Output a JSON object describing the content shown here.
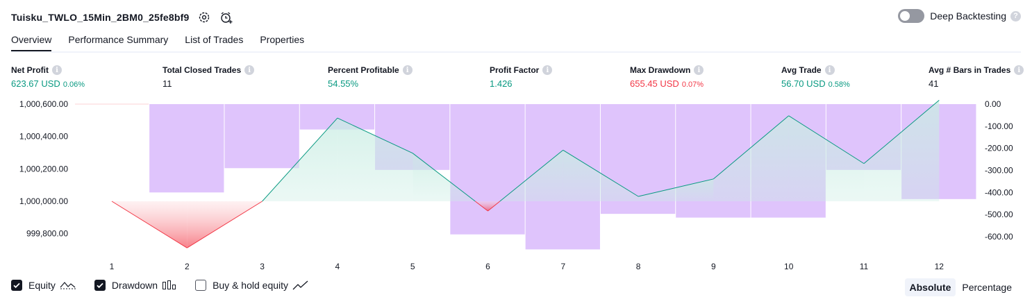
{
  "header": {
    "strategy_name": "Tuisku_TWLO_15Min_2BM0_25fe8bf9",
    "deep_backtesting_label": "Deep Backtesting",
    "deep_backtesting_on": false
  },
  "tabs": [
    {
      "label": "Overview",
      "active": true
    },
    {
      "label": "Performance Summary"
    },
    {
      "label": "List of Trades"
    },
    {
      "label": "Properties"
    }
  ],
  "metrics": [
    {
      "label": "Net Profit",
      "value": "623.67 USD",
      "pct": "0.06%",
      "color": "green"
    },
    {
      "label": "Total Closed Trades",
      "value": "11",
      "pct": "",
      "color": "dark"
    },
    {
      "label": "Percent Profitable",
      "value": "54.55%",
      "pct": "",
      "color": "green"
    },
    {
      "label": "Profit Factor",
      "value": "1.426",
      "pct": "",
      "color": "green"
    },
    {
      "label": "Max Drawdown",
      "value": "655.45 USD",
      "pct": "0.07%",
      "color": "red"
    },
    {
      "label": "Avg Trade",
      "value": "56.70 USD",
      "pct": "0.58%",
      "color": "green"
    },
    {
      "label": "Avg # Bars in Trades",
      "value": "41",
      "pct": "",
      "color": "dark"
    }
  ],
  "chart_data": {
    "type": "line",
    "x": [
      1,
      2,
      3,
      4,
      5,
      6,
      7,
      8,
      9,
      10,
      11,
      12
    ],
    "series": [
      {
        "name": "Equity",
        "type": "area",
        "values": [
          1000000,
          999712,
          1000000,
          1000514,
          1000297,
          999940,
          1000316,
          1000030,
          1000138,
          1000528,
          1000233,
          1000624
        ]
      },
      {
        "name": "Drawdown",
        "type": "bar",
        "values": [
          0,
          -400,
          -290,
          -115,
          -298,
          -590,
          -658,
          -497,
          -514,
          -514,
          -298,
          -430
        ]
      }
    ],
    "left_axis": {
      "ticks": [
        "1,000,600.00",
        "1,000,400.00",
        "1,000,200.00",
        "1,000,000.00",
        "999,800.00"
      ],
      "values": [
        1000600,
        1000400,
        1000200,
        1000000,
        999800
      ],
      "range": [
        999700,
        1000600
      ]
    },
    "right_axis": {
      "ticks": [
        "0.00",
        "-100.00",
        "-200.00",
        "-300.00",
        "-400.00",
        "-500.00",
        "-600.00"
      ],
      "values": [
        0,
        -100,
        -200,
        -300,
        -400,
        -500,
        -600
      ],
      "range": [
        -660,
        0
      ]
    },
    "colors": {
      "up_line": "#089981",
      "up_fill": "#c9ede3",
      "down_line": "#f23645",
      "down_fill": "#fcd3d6",
      "drawdown_bar": "#dfc4fc",
      "grid": "#ffffff"
    }
  },
  "legend": [
    {
      "label": "Equity",
      "checked": true,
      "icon": "equity-line-icon"
    },
    {
      "label": "Drawdown",
      "checked": true,
      "icon": "drawdown-bars-icon"
    },
    {
      "label": "Buy & hold equity",
      "checked": false,
      "icon": "buy-hold-line-icon"
    }
  ],
  "mode": {
    "absolute": "Absolute",
    "percentage": "Percentage",
    "selected": "Absolute"
  }
}
